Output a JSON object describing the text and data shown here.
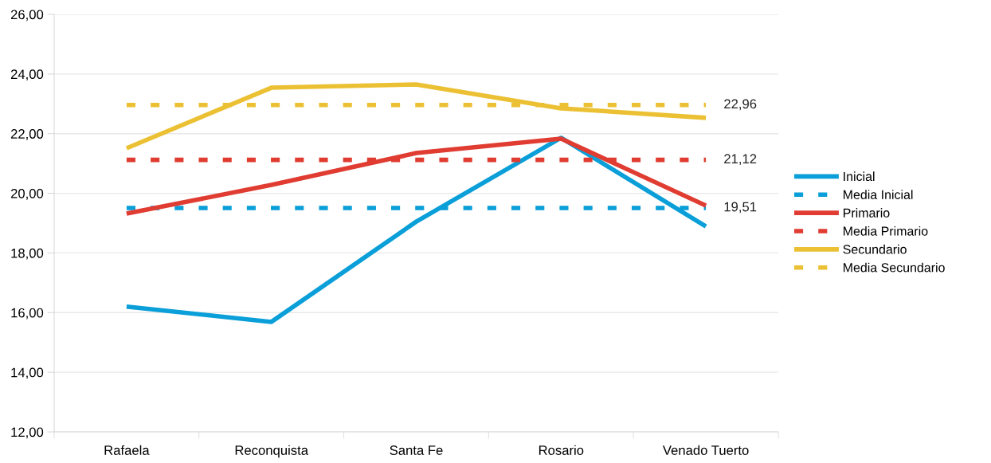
{
  "chart_data": {
    "type": "line",
    "categories": [
      "Rafaela",
      "Reconquista",
      "Santa Fe",
      "Rosario",
      "Venado Tuerto"
    ],
    "series": [
      {
        "name": "Inicial",
        "color": "#0a9fd8",
        "values": [
          16.2,
          15.69,
          19.05,
          21.86,
          18.89
        ],
        "line_style": "solid"
      },
      {
        "name": "Media Inicial",
        "color": "#0a9fd8",
        "values": [
          19.51,
          19.51,
          19.51,
          19.51,
          19.51
        ],
        "line_style": "dashed",
        "value_labels": [
          null,
          null,
          null,
          null,
          "19,51"
        ]
      },
      {
        "name": "Primario",
        "color": "#e03c31",
        "values": [
          19.32,
          20.28,
          21.35,
          21.83,
          19.59
        ],
        "line_style": "solid"
      },
      {
        "name": "Media Primario",
        "color": "#e03c31",
        "values": [
          21.12,
          21.12,
          21.12,
          21.12,
          21.12
        ],
        "line_style": "dashed",
        "value_labels": [
          null,
          null,
          null,
          null,
          "21,12"
        ]
      },
      {
        "name": "Secundario",
        "color": "#ebc033",
        "values": [
          21.51,
          23.54,
          23.65,
          22.85,
          22.53
        ],
        "line_style": "solid"
      },
      {
        "name": "Media Secundario",
        "color": "#ebc033",
        "values": [
          22.96,
          22.96,
          22.96,
          22.96,
          22.96
        ],
        "line_style": "dashed",
        "value_labels": [
          null,
          null,
          null,
          null,
          "22,96"
        ]
      }
    ],
    "ylim": [
      12,
      26
    ],
    "yticks": [
      {
        "value": 12,
        "label": "12,00"
      },
      {
        "value": 14,
        "label": "14,00"
      },
      {
        "value": 16,
        "label": "16,00"
      },
      {
        "value": 18,
        "label": "18,00"
      },
      {
        "value": 20,
        "label": "20,00"
      },
      {
        "value": 22,
        "label": "22,00"
      },
      {
        "value": 24,
        "label": "24,00"
      },
      {
        "value": 26,
        "label": "26,00"
      }
    ],
    "grid": "y",
    "legend": "right",
    "marker": "none"
  }
}
